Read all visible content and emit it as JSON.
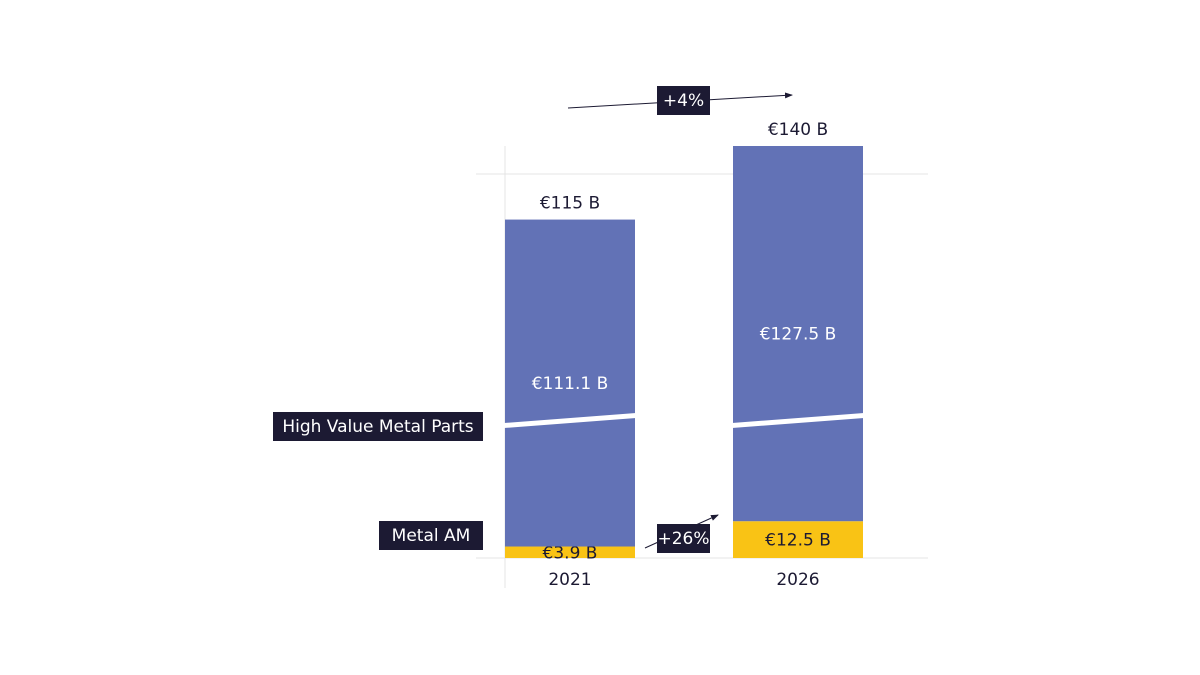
{
  "chart_data": {
    "type": "stacked-bar",
    "categories": [
      "2021",
      "2026"
    ],
    "series": [
      {
        "name": "Metal AM",
        "color": "#f9c315",
        "values": [
          3.9,
          12.5
        ],
        "value_labels": [
          "€3.9 B",
          "€12.5 B"
        ]
      },
      {
        "name": "High Value Metal Parts",
        "color": "#6272b6",
        "values": [
          111.1,
          127.5
        ],
        "value_labels": [
          "€111.1 B",
          "€127.5 B"
        ]
      }
    ],
    "totals": {
      "values": [
        115,
        140
      ],
      "value_labels": [
        "€115 B",
        "€140 B"
      ]
    },
    "annotations": [
      "+4%",
      "+26%"
    ],
    "ylim": [
      0,
      140
    ],
    "axis_break": true
  }
}
